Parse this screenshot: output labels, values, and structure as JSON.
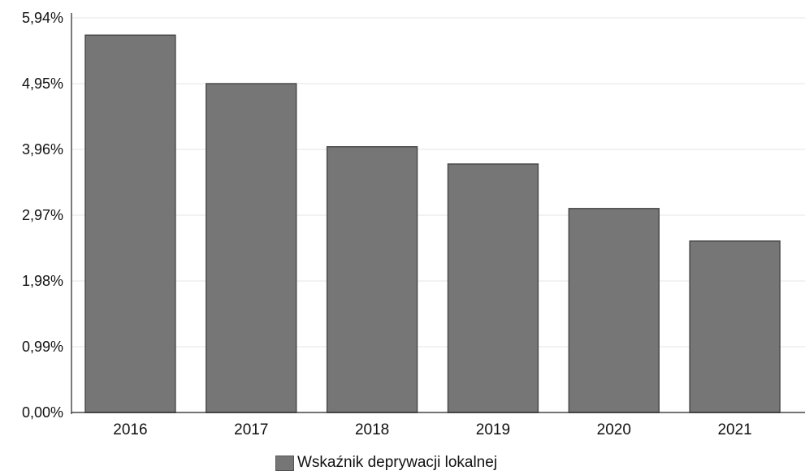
{
  "chart_data": {
    "type": "bar",
    "categories": [
      "2016",
      "2017",
      "2018",
      "2019",
      "2020",
      "2021"
    ],
    "series": [
      {
        "name": "Wskaźnik deprywacji lokalnej",
        "values": [
          5.68,
          4.95,
          4.0,
          3.74,
          3.07,
          2.58
        ]
      }
    ],
    "y_ticks": [
      "0,00%",
      "0,99%",
      "1,98%",
      "2,97%",
      "3,96%",
      "4,95%",
      "5,94%"
    ],
    "ylim": [
      0,
      5.94
    ],
    "grid": true,
    "legend_position": "bottom",
    "colors": {
      "bar": "#767676",
      "bar_edge": "#4a4a4a",
      "grid": "#e6e6e6",
      "axis": "#222222"
    }
  }
}
